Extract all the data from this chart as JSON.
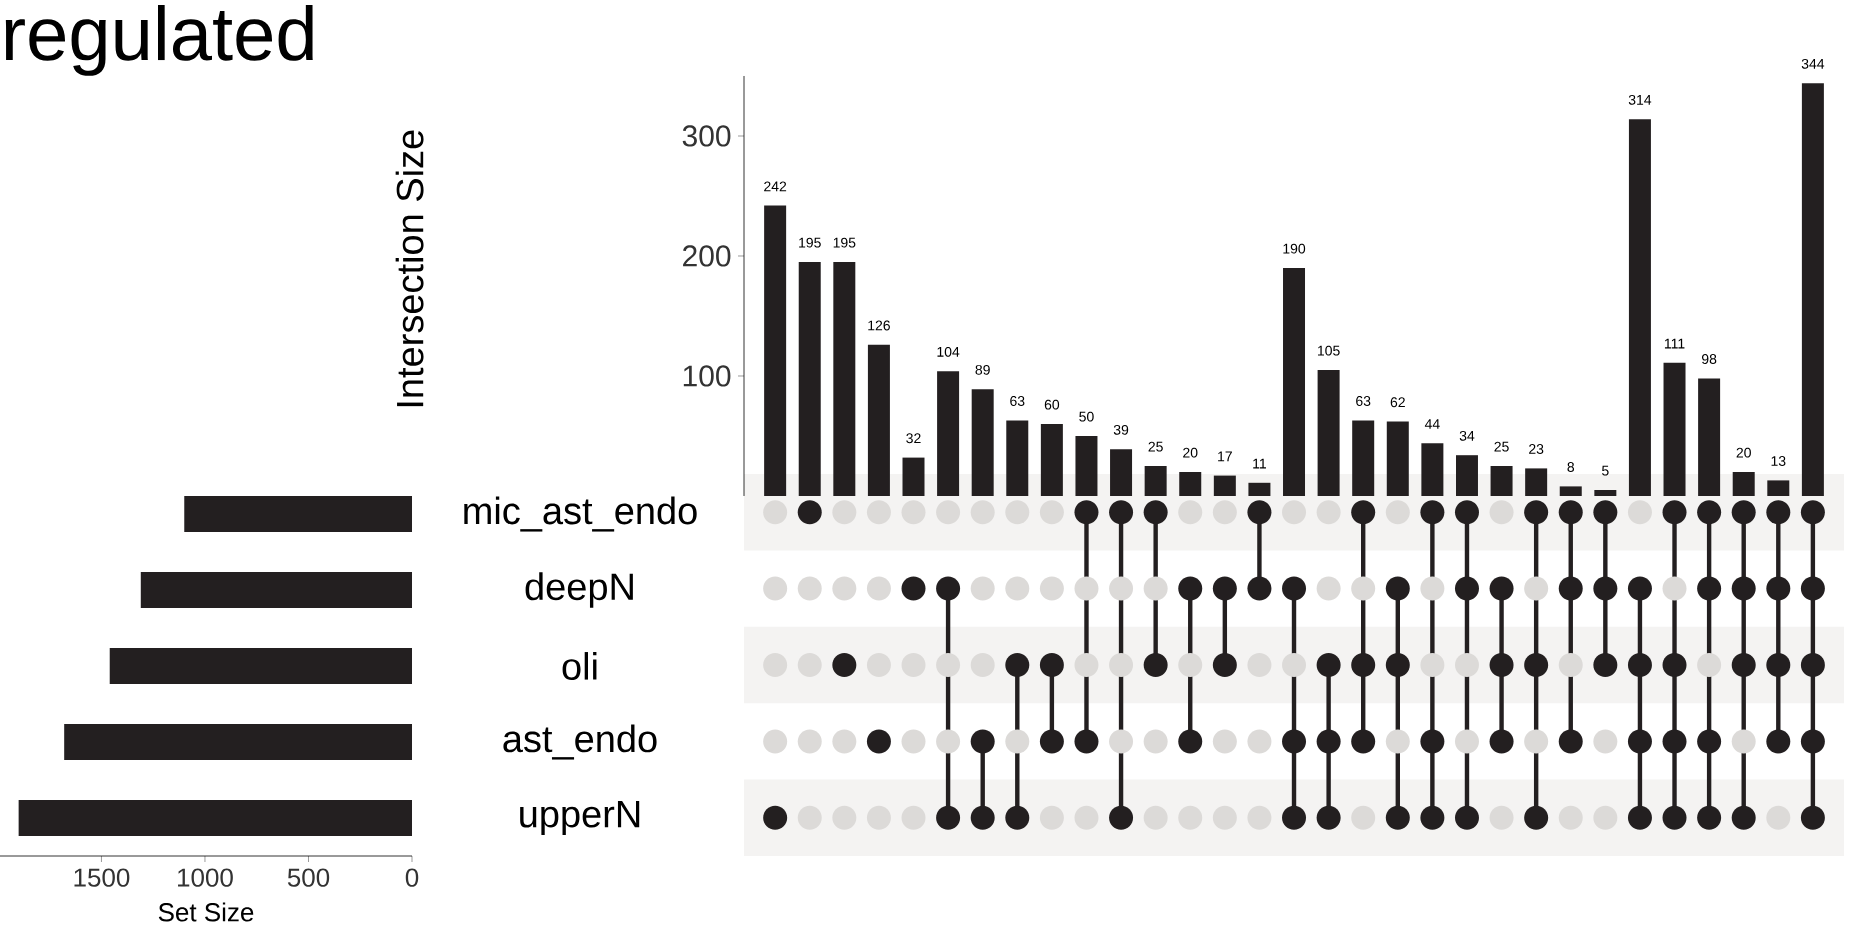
{
  "chart_data": [
    {
      "type": "bar",
      "title": "regulated",
      "ylabel": "Intersection Size",
      "categories": [
        null,
        null,
        null,
        null,
        null,
        null,
        null,
        null,
        null,
        null,
        null,
        null,
        null,
        null,
        null,
        null,
        null,
        null,
        null,
        null,
        null,
        null,
        null,
        null,
        null,
        null,
        null,
        null,
        null,
        null,
        null
      ],
      "values": [
        242,
        195,
        195,
        126,
        32,
        104,
        89,
        63,
        60,
        50,
        39,
        25,
        20,
        17,
        11,
        190,
        105,
        63,
        62,
        44,
        34,
        25,
        23,
        8,
        5,
        314,
        111,
        98,
        20,
        13,
        344
      ],
      "color": "#231f20",
      "ylim": [
        0,
        350
      ],
      "yticks": [
        100,
        200,
        300
      ],
      "data_labels": true,
      "tick_labels": "y"
    },
    {
      "type": "bar",
      "orientation": "horizontal",
      "xlabel": "Set Size",
      "categories": [
        "mic_ast_endo",
        "deepN",
        "oli",
        "ast_endo",
        "upperN"
      ],
      "values": [
        1100,
        1310,
        1460,
        1680,
        1900
      ],
      "color": "#231f20",
      "xlim": [
        1990,
        0
      ],
      "xticks": [
        1500,
        1000,
        500,
        0
      ],
      "tick_labels": "x"
    },
    {
      "type": "other",
      "colors": [
        "#dcdad8",
        "#231f20"
      ],
      "cells": [
        [
          false,
          true,
          false,
          false,
          false,
          false,
          false,
          false,
          false,
          true,
          true,
          true,
          false,
          false,
          true,
          false,
          false,
          true,
          false,
          true,
          true,
          false,
          true,
          true,
          true,
          false,
          true,
          true,
          true,
          true,
          true
        ],
        [
          false,
          false,
          false,
          false,
          true,
          true,
          false,
          false,
          false,
          false,
          false,
          false,
          true,
          true,
          true,
          true,
          false,
          false,
          true,
          false,
          true,
          true,
          false,
          true,
          true,
          true,
          false,
          true,
          true,
          true,
          true
        ],
        [
          false,
          false,
          true,
          false,
          false,
          false,
          false,
          true,
          true,
          false,
          false,
          true,
          false,
          true,
          false,
          false,
          true,
          true,
          true,
          false,
          false,
          true,
          true,
          false,
          true,
          true,
          true,
          false,
          true,
          true,
          true
        ],
        [
          false,
          false,
          false,
          true,
          false,
          false,
          true,
          false,
          true,
          true,
          false,
          false,
          true,
          false,
          false,
          true,
          true,
          true,
          false,
          true,
          false,
          true,
          false,
          true,
          false,
          true,
          true,
          true,
          false,
          true,
          true
        ],
        [
          true,
          false,
          false,
          false,
          false,
          true,
          true,
          true,
          false,
          false,
          true,
          false,
          false,
          false,
          false,
          true,
          true,
          false,
          true,
          true,
          true,
          false,
          true,
          false,
          false,
          true,
          true,
          true,
          true,
          false,
          true
        ]
      ]
    }
  ]
}
